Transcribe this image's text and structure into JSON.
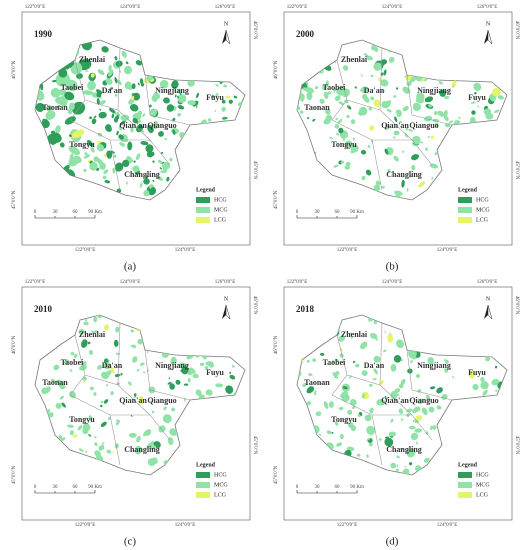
{
  "panels": [
    {
      "year": "1990",
      "caption": "(a)"
    },
    {
      "year": "2000",
      "caption": "(b)"
    },
    {
      "year": "2010",
      "caption": "(c)"
    },
    {
      "year": "2018",
      "caption": "(d)"
    }
  ],
  "counties": [
    "Zhenlai",
    "Taobei",
    "Da'an",
    "Ningjiang",
    "Fuyu",
    "Taonan",
    "Qian'an",
    "Qianguo",
    "Tongyu",
    "Changling"
  ],
  "legend": {
    "title": "Legend",
    "items": [
      "HCG",
      "MCG",
      "LCG"
    ]
  },
  "scale": [
    "0",
    "30",
    "60",
    "90 Km"
  ],
  "north": "N",
  "coords": {
    "top": [
      "122°0'0\"E",
      "124°0'0\"E",
      "126°0'0\"E"
    ],
    "bottom": [
      "122°0'0\"E",
      "124°0'0\"E"
    ],
    "left": [
      "46°0'0\"N",
      "45°0'0\"N"
    ],
    "right": [
      "46°0'0\"N",
      "45°0'0\"N"
    ]
  }
}
